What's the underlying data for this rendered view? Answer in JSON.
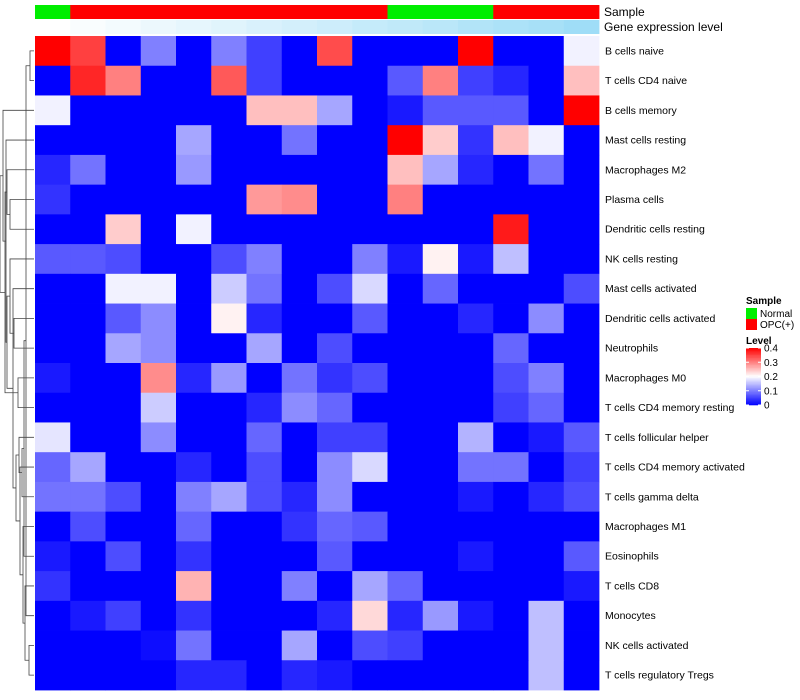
{
  "chart_data": {
    "type": "heatmap",
    "columns": 16,
    "annotation_labels": {
      "sample": "Sample",
      "expression": "Gene expression level"
    },
    "sample_groups": [
      "Normal",
      "OPC(+)",
      "OPC(+)",
      "OPC(+)",
      "OPC(+)",
      "OPC(+)",
      "OPC(+)",
      "OPC(+)",
      "OPC(+)",
      "OPC(+)",
      "Normal",
      "Normal",
      "Normal",
      "OPC(+)",
      "OPC(+)",
      "OPC(+)"
    ],
    "expression_level": [
      0.0,
      0.03,
      0.06,
      0.1,
      0.13,
      0.16,
      0.2,
      0.23,
      0.26,
      0.3,
      0.33,
      0.36,
      0.4,
      0.43,
      0.46,
      0.5
    ],
    "rows": [
      "B cells naive",
      "T cells CD4 naive",
      "B cells memory",
      "Mast cells resting",
      "Macrophages M2",
      "Plasma cells",
      "Dendritic cells resting",
      "NK cells resting",
      "Mast cells activated",
      "Dendritic cells activated",
      "Neutrophils",
      "Macrophages M0",
      "T cells CD4 memory resting",
      "T cells follicular helper",
      "T cells CD4 memory activated",
      "T cells gamma delta",
      "Macrophages M1",
      "Eosinophils",
      "T cells CD8",
      "Monocytes",
      "NK cells activated",
      "T cells regulatory  Tregs"
    ],
    "values": [
      [
        0.4,
        0.35,
        0.0,
        0.1,
        0.0,
        0.1,
        0.05,
        0.0,
        0.34,
        0.0,
        0.0,
        0.0,
        0.4,
        0.0,
        0.0,
        0.19
      ],
      [
        0.0,
        0.37,
        0.3,
        0.0,
        0.0,
        0.33,
        0.05,
        0.0,
        0.0,
        0.0,
        0.07,
        0.3,
        0.05,
        0.03,
        0.0,
        0.25
      ],
      [
        0.19,
        0.0,
        0.0,
        0.0,
        0.0,
        0.0,
        0.25,
        0.25,
        0.13,
        0.0,
        0.02,
        0.07,
        0.07,
        0.07,
        0.0,
        0.4
      ],
      [
        0.0,
        0.0,
        0.0,
        0.0,
        0.13,
        0.0,
        0.0,
        0.09,
        0.0,
        0.0,
        0.4,
        0.24,
        0.04,
        0.25,
        0.19,
        0.0
      ],
      [
        0.03,
        0.09,
        0.0,
        0.0,
        0.12,
        0.0,
        0.0,
        0.0,
        0.0,
        0.0,
        0.25,
        0.13,
        0.03,
        0.0,
        0.09,
        0.0
      ],
      [
        0.04,
        0.0,
        0.0,
        0.0,
        0.0,
        0.0,
        0.28,
        0.29,
        0.0,
        0.0,
        0.3,
        0.0,
        0.0,
        0.0,
        0.0,
        0.0
      ],
      [
        0.0,
        0.0,
        0.24,
        0.0,
        0.19,
        0.0,
        0.0,
        0.0,
        0.0,
        0.0,
        0.0,
        0.0,
        0.0,
        0.38,
        0.0,
        0.0
      ],
      [
        0.07,
        0.07,
        0.06,
        0.0,
        0.0,
        0.06,
        0.1,
        0.0,
        0.0,
        0.1,
        0.02,
        0.21,
        0.02,
        0.15,
        0.0,
        0.0
      ],
      [
        0.0,
        0.0,
        0.19,
        0.19,
        0.0,
        0.16,
        0.09,
        0.0,
        0.06,
        0.17,
        0.0,
        0.08,
        0.0,
        0.0,
        0.0,
        0.06
      ],
      [
        0.0,
        0.0,
        0.07,
        0.11,
        0.0,
        0.21,
        0.03,
        0.0,
        0.0,
        0.07,
        0.0,
        0.0,
        0.03,
        0.0,
        0.11,
        0.0
      ],
      [
        0.0,
        0.0,
        0.13,
        0.11,
        0.0,
        0.0,
        0.13,
        0.0,
        0.06,
        0.0,
        0.0,
        0.0,
        0.0,
        0.08,
        0.0,
        0.0
      ],
      [
        0.02,
        0.0,
        0.0,
        0.29,
        0.03,
        0.12,
        0.0,
        0.09,
        0.04,
        0.06,
        0.0,
        0.0,
        0.0,
        0.06,
        0.1,
        0.0
      ],
      [
        0.0,
        0.0,
        0.0,
        0.16,
        0.0,
        0.0,
        0.03,
        0.11,
        0.08,
        0.0,
        0.0,
        0.0,
        0.0,
        0.05,
        0.08,
        0.0
      ],
      [
        0.18,
        0.0,
        0.0,
        0.11,
        0.0,
        0.0,
        0.08,
        0.0,
        0.05,
        0.05,
        0.0,
        0.0,
        0.14,
        0.0,
        0.02,
        0.07
      ],
      [
        0.08,
        0.13,
        0.0,
        0.0,
        0.03,
        0.0,
        0.06,
        0.0,
        0.11,
        0.17,
        0.0,
        0.0,
        0.09,
        0.09,
        0.0,
        0.05
      ],
      [
        0.09,
        0.09,
        0.06,
        0.0,
        0.1,
        0.13,
        0.06,
        0.03,
        0.11,
        0.0,
        0.0,
        0.0,
        0.02,
        0.0,
        0.03,
        0.06
      ],
      [
        0.0,
        0.06,
        0.0,
        0.0,
        0.08,
        0.0,
        0.0,
        0.04,
        0.08,
        0.07,
        0.0,
        0.0,
        0.0,
        0.0,
        0.0,
        0.0
      ],
      [
        0.02,
        0.0,
        0.06,
        0.0,
        0.04,
        0.0,
        0.0,
        0.0,
        0.07,
        0.0,
        0.0,
        0.0,
        0.02,
        0.0,
        0.0,
        0.07
      ],
      [
        0.04,
        0.0,
        0.0,
        0.0,
        0.26,
        0.0,
        0.0,
        0.1,
        0.0,
        0.13,
        0.08,
        0.0,
        0.0,
        0.0,
        0.0,
        0.02
      ],
      [
        0.0,
        0.02,
        0.05,
        0.0,
        0.04,
        0.0,
        0.0,
        0.0,
        0.03,
        0.23,
        0.03,
        0.12,
        0.02,
        0.0,
        0.15,
        0.0
      ],
      [
        0.0,
        0.0,
        0.0,
        0.01,
        0.09,
        0.0,
        0.0,
        0.13,
        0.0,
        0.06,
        0.05,
        0.0,
        0.0,
        0.0,
        0.15,
        0.0
      ],
      [
        0.0,
        0.0,
        0.0,
        0.0,
        0.03,
        0.03,
        0.0,
        0.03,
        0.02,
        0.0,
        0.0,
        0.0,
        0.0,
        0.0,
        0.15,
        0.0
      ]
    ],
    "legend": {
      "sample_title": "Sample",
      "sample_entries": [
        {
          "label": "Normal",
          "color": "#00ee00"
        },
        {
          "label": "OPC(+)",
          "color": "#ff0000"
        }
      ],
      "level_title": "Level",
      "level_ticks": [
        {
          "value": 0.4,
          "label": "0.4"
        },
        {
          "value": 0.3,
          "label": "0.3"
        },
        {
          "value": 0.2,
          "label": "0.2"
        },
        {
          "value": 0.1,
          "label": "0.1"
        },
        {
          "value": 0.0,
          "label": "0"
        }
      ]
    },
    "colors": {
      "low": "#0000ff",
      "mid": "#ffffff",
      "high": "#ff0000",
      "expr_low": "#ffffff",
      "expr_high": "#3fbbee"
    },
    "range": [
      0,
      0.4
    ]
  }
}
